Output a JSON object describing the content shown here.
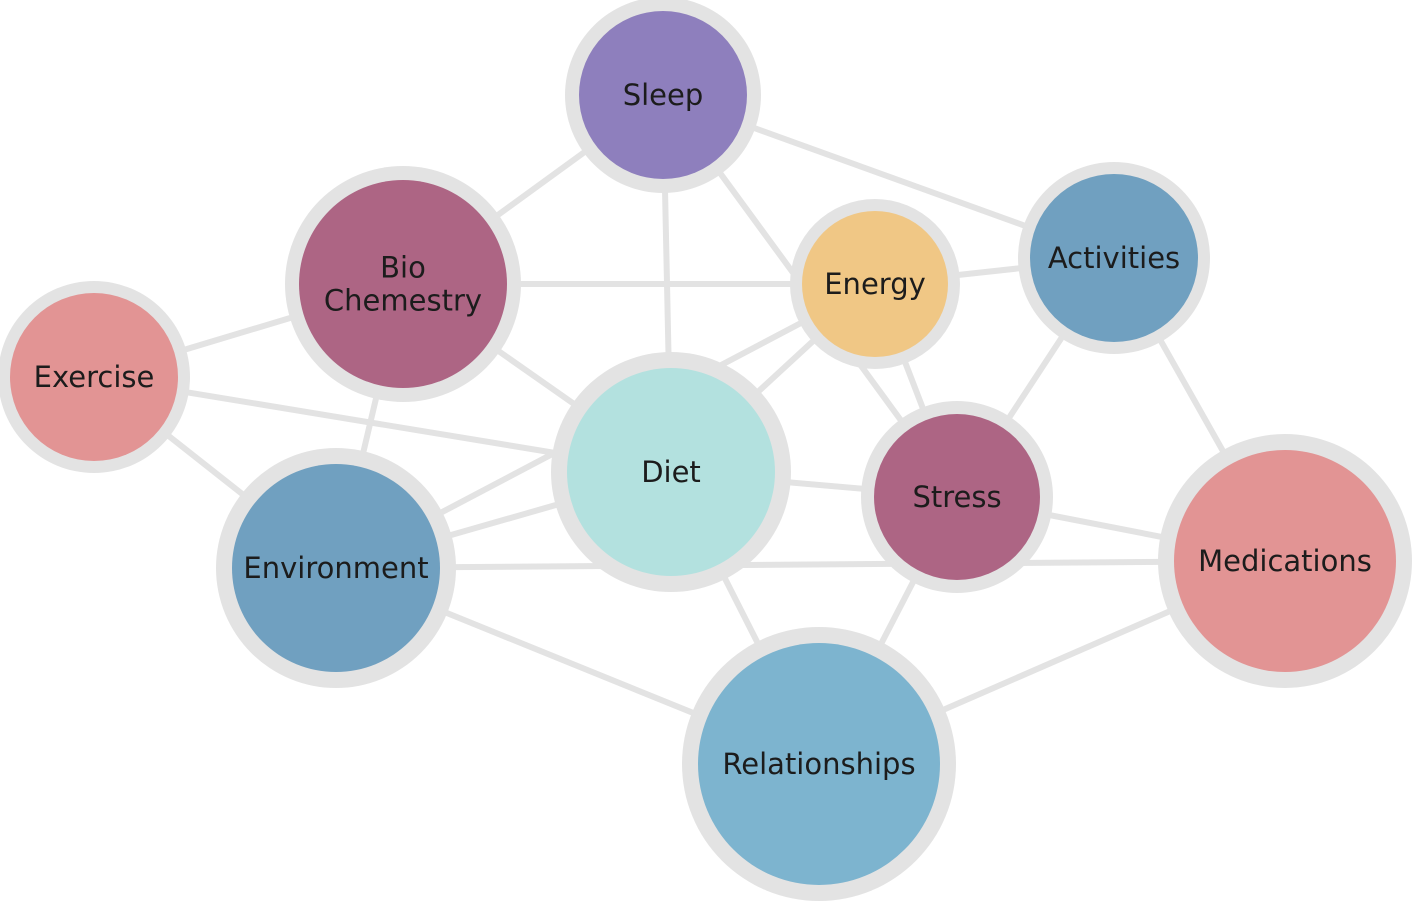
{
  "nodes": [
    {
      "id": "sleep",
      "label": [
        "Sleep"
      ],
      "color": "#8e7fbd"
    },
    {
      "id": "biochem",
      "label": [
        "Bio",
        "Chemestry"
      ],
      "color": "#ad6584"
    },
    {
      "id": "exercise",
      "label": [
        "Exercise"
      ],
      "color": "#e29494"
    },
    {
      "id": "energy",
      "label": [
        "Energy"
      ],
      "color": "#f0c785"
    },
    {
      "id": "activities",
      "label": [
        "Activities"
      ],
      "color": "#70a0c0"
    },
    {
      "id": "diet",
      "label": [
        "Diet"
      ],
      "color": "#b3e1df"
    },
    {
      "id": "stress",
      "label": [
        "Stress"
      ],
      "color": "#ad6584"
    },
    {
      "id": "environment",
      "label": [
        "Environment"
      ],
      "color": "#70a0c0"
    },
    {
      "id": "medications",
      "label": [
        "Medications"
      ],
      "color": "#e29494"
    },
    {
      "id": "relationships",
      "label": [
        "Relationships"
      ],
      "color": "#7db4cf"
    }
  ],
  "edges": [
    [
      "sleep",
      "biochem"
    ],
    [
      "sleep",
      "diet"
    ],
    [
      "sleep",
      "stress"
    ],
    [
      "sleep",
      "activities"
    ],
    [
      "biochem",
      "exercise"
    ],
    [
      "biochem",
      "energy"
    ],
    [
      "biochem",
      "diet"
    ],
    [
      "biochem",
      "environment"
    ],
    [
      "exercise",
      "diet"
    ],
    [
      "exercise",
      "environment"
    ],
    [
      "energy",
      "activities"
    ],
    [
      "energy",
      "diet"
    ],
    [
      "energy",
      "stress"
    ],
    [
      "energy",
      "environment"
    ],
    [
      "activities",
      "stress"
    ],
    [
      "activities",
      "medications"
    ],
    [
      "diet",
      "stress"
    ],
    [
      "diet",
      "environment"
    ],
    [
      "diet",
      "relationships"
    ],
    [
      "stress",
      "medications"
    ],
    [
      "stress",
      "relationships"
    ],
    [
      "environment",
      "medications"
    ],
    [
      "environment",
      "relationships"
    ],
    [
      "relationships",
      "medications"
    ]
  ]
}
